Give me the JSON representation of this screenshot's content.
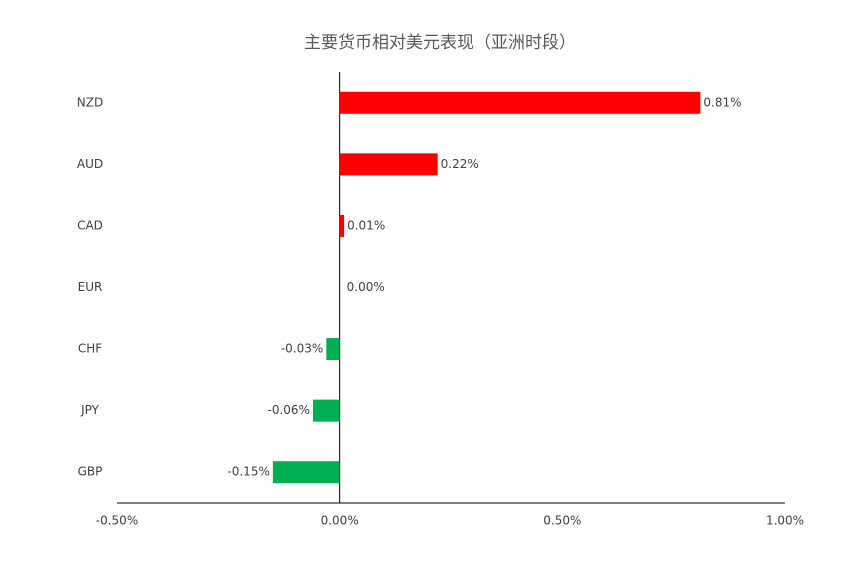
{
  "chart_data": {
    "type": "hbar",
    "title": "主要货币相对美元表现（亚洲时段）",
    "categories": [
      "NZD",
      "AUD",
      "CAD",
      "EUR",
      "CHF",
      "JPY",
      "GBP"
    ],
    "values": [
      0.81,
      0.22,
      0.01,
      0.0,
      -0.03,
      -0.06,
      -0.15
    ],
    "value_labels": [
      "0.81%",
      "0.22%",
      "0.01%",
      "0.00%",
      "-0.03%",
      "-0.06%",
      "-0.15%"
    ],
    "colors": [
      "#ff0000",
      "#ff0000",
      "#ff0000",
      "#ff0000",
      "#00b050",
      "#00b050",
      "#00b050"
    ],
    "xlim": [
      -0.5,
      1.0
    ],
    "xticks": [
      {
        "value": -0.5,
        "label": "-0.50%"
      },
      {
        "value": 0,
        "label": "0.00%"
      },
      {
        "value": 0.5,
        "label": "0.50%"
      },
      {
        "value": 1.0,
        "label": "1.00%"
      }
    ]
  }
}
